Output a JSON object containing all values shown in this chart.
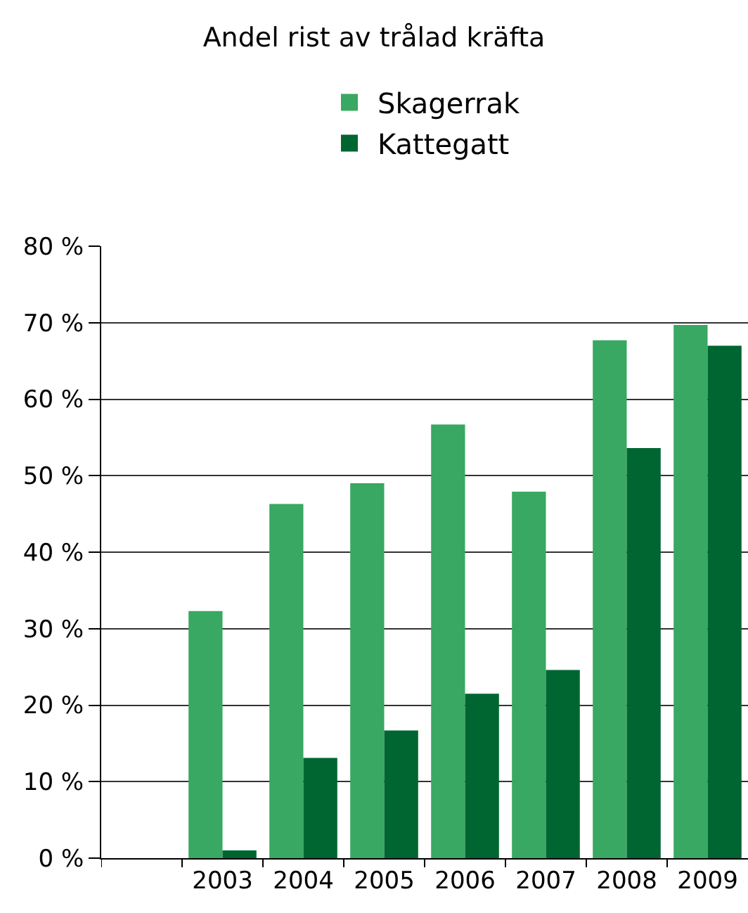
{
  "chart_data": {
    "type": "bar",
    "title": "Andel rist av trålad kräfta",
    "categories": [
      null,
      "2003",
      "2004",
      "2005",
      "2006",
      "2007",
      "2008",
      "2009"
    ],
    "series": [
      {
        "name": "Skagerrak",
        "color": "#38a862",
        "values": [
          null,
          32.3,
          46.3,
          49.0,
          56.7,
          47.9,
          67.7,
          69.7
        ]
      },
      {
        "name": "Kattegatt",
        "color": "#006631",
        "values": [
          null,
          1.0,
          13.1,
          16.7,
          21.5,
          24.6,
          53.6,
          67.0
        ]
      }
    ],
    "ylim": [
      0,
      80
    ],
    "yticks": [
      {
        "value": 0,
        "label": "0 %"
      },
      {
        "value": 10,
        "label": "10 %"
      },
      {
        "value": 20,
        "label": "20 %"
      },
      {
        "value": 30,
        "label": "30 %"
      },
      {
        "value": 40,
        "label": "40 %"
      },
      {
        "value": 50,
        "label": "50 %"
      },
      {
        "value": 60,
        "label": "60 %"
      },
      {
        "value": 70,
        "label": "70 %"
      },
      {
        "value": 80,
        "label": "80 %"
      }
    ],
    "grid": "y",
    "legend": "top"
  }
}
